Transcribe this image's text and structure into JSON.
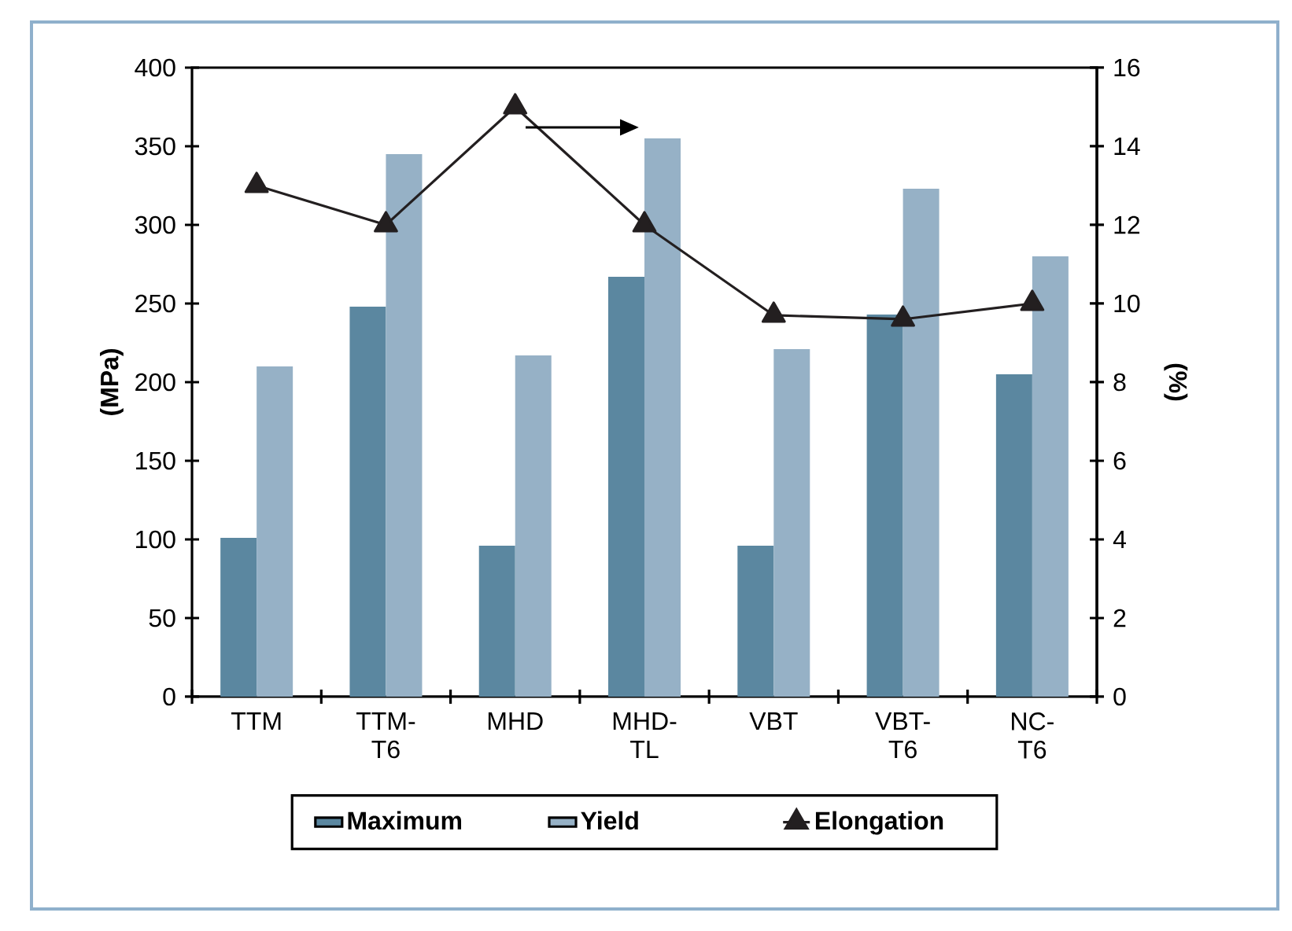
{
  "chart_data": {
    "type": "bar",
    "ylabel": "(MPa)",
    "y2label": "(%)",
    "categories": [
      "TTM",
      "TTM-T6",
      "MHD",
      "MHD-TL",
      "VBT",
      "VBT-T6",
      "NC-T6"
    ],
    "series": [
      {
        "name": "Maximum",
        "color": "#5b87a0",
        "values": [
          101,
          248,
          96,
          267,
          96,
          243,
          205
        ]
      },
      {
        "name": "Yield",
        "color": "#96b1c6",
        "values": [
          210,
          345,
          217,
          355,
          221,
          323,
          280
        ]
      },
      {
        "name": "Elongation",
        "type": "line",
        "axis": "y2",
        "color": "#231f20",
        "values": [
          13,
          12,
          15,
          12,
          9.7,
          9.6,
          10
        ]
      }
    ],
    "ylim": [
      0,
      400
    ],
    "yticks": [
      0,
      50,
      100,
      150,
      200,
      250,
      300,
      350,
      400
    ],
    "y2lim": [
      0,
      16
    ],
    "y2ticks": [
      0,
      2,
      4,
      6,
      8,
      10,
      12,
      14,
      16
    ],
    "legend": "bottom",
    "marker": "triangle",
    "line_style": "solid"
  }
}
